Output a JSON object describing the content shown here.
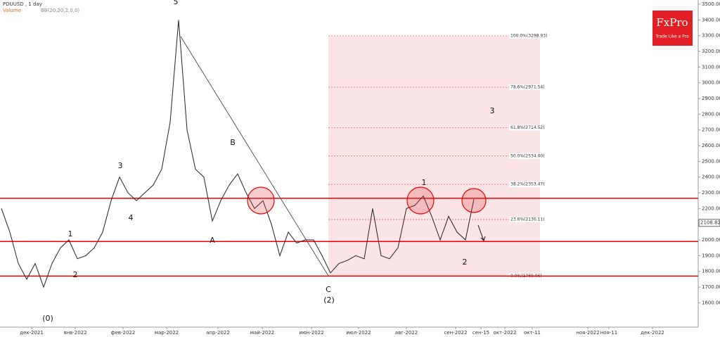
{
  "header": {
    "symbol": "PDUUSD , 1 day",
    "volume": "Volume",
    "indicator": "BB(20,20,2,0,0)"
  },
  "logo": {
    "brand": "FxPro",
    "tagline": "Trade Like a Pro"
  },
  "chart_data": {
    "type": "line",
    "color": "#222222",
    "values": [
      2200,
      2050,
      1850,
      1750,
      1850,
      1700,
      1850,
      1950,
      2000,
      1880,
      1900,
      1950,
      2050,
      2250,
      2400,
      2300,
      2250,
      2300,
      2350,
      2450,
      2750,
      3400,
      2700,
      2450,
      2400,
      2120,
      2250,
      2350,
      2420,
      2300,
      2200,
      2250,
      2100,
      1900,
      2050,
      1980,
      2000,
      2000,
      1900,
      1790,
      1850,
      1870,
      1900,
      1880,
      2200,
      1900,
      1880,
      1950,
      2200,
      2220,
      2280,
      2150,
      2000,
      2150,
      2050,
      2000,
      2260
    ],
    "ylim": [
      1445,
      3527
    ],
    "yticks": [
      {
        "value": 1600,
        "label": "1600.00"
      },
      {
        "value": 1700,
        "label": "1700.00"
      },
      {
        "value": 1800,
        "label": "1800.00"
      },
      {
        "value": 1900,
        "label": "1900.00"
      },
      {
        "value": 2000,
        "label": "2000.00"
      },
      {
        "value": 2100,
        "label": "2100.00"
      },
      {
        "value": 2200,
        "label": "2200.00"
      },
      {
        "value": 2300,
        "label": "2300.00"
      },
      {
        "value": 2400,
        "label": "2400.00"
      },
      {
        "value": 2500,
        "label": "2500.00"
      },
      {
        "value": 2600,
        "label": "2600.00"
      },
      {
        "value": 2700,
        "label": "2700.00"
      },
      {
        "value": 2800,
        "label": "2800.00"
      },
      {
        "value": 2900,
        "label": "2900.00"
      },
      {
        "value": 3000,
        "label": "3000.00"
      },
      {
        "value": 3100,
        "label": "3100.00"
      },
      {
        "value": 3200,
        "label": "3200.00"
      },
      {
        "value": 3300,
        "label": "3300.00"
      },
      {
        "value": 3400,
        "label": "3400.00"
      },
      {
        "value": 3500,
        "label": "3500.00"
      }
    ],
    "x_labels": [
      "дек-2021",
      "янв-2022",
      "фев-2022",
      "мар-2022",
      "апр-2022",
      "май-2022",
      "июн-2022",
      "июл-2022",
      "авг-2022",
      "сен-2022",
      "сен-15",
      "окт-2022",
      "окт-11",
      "ноя-2022",
      "ноя-11",
      "дек-2022"
    ],
    "last_price": {
      "value": 2108.82,
      "label": "2108.82"
    },
    "levels": [
      2265,
      1990,
      1770
    ],
    "fib_levels": [
      {
        "value": 3298.93,
        "label": "100.0%(3298.93)"
      },
      {
        "value": 2971.54,
        "label": "78.6%(2971.54)"
      },
      {
        "value": 2714.52,
        "label": "61.8%(2714.52)"
      },
      {
        "value": 2534.0,
        "label": "50.0%(2534.00)"
      },
      {
        "value": 2353.47,
        "label": "38.2%(2353.47)"
      },
      {
        "value": 2130.11,
        "label": "23.6%(2130.11)"
      },
      {
        "value": 1769.06,
        "label": "0.0%(1769.06)"
      }
    ],
    "waves": [
      "5",
      "3",
      "4",
      "1",
      "2",
      "(0)",
      "B",
      "A",
      "C",
      "(2)",
      "1",
      "2",
      "3"
    ]
  }
}
